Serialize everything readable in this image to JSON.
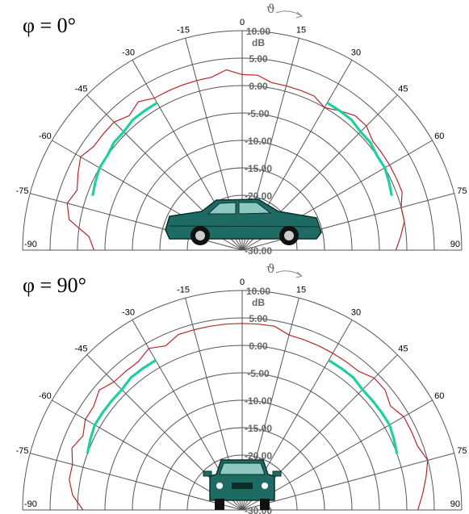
{
  "chart_data": [
    {
      "type": "polar",
      "title": "φ = 0°",
      "rlabel": "dB",
      "theta_label": "ϑ",
      "thetalim": [
        -90,
        90
      ],
      "thetaticks": [
        -90,
        -75,
        -60,
        -45,
        -30,
        -15,
        0,
        15,
        30,
        45,
        60,
        75,
        90
      ],
      "rlim": [
        -30,
        10
      ],
      "rticks": [
        {
          "value": 10,
          "label": "10.00"
        },
        {
          "value": 5,
          "label": "5.00"
        },
        {
          "value": 0,
          "label": "0.00"
        },
        {
          "value": -5,
          "label": "-5.00"
        },
        {
          "value": -10,
          "label": "-10.00"
        },
        {
          "value": -15,
          "label": "-15.00"
        },
        {
          "value": -20,
          "label": "-20.00"
        },
        {
          "value": -30,
          "label": "-30.00"
        }
      ],
      "x": [
        -90,
        -85,
        -80,
        -75,
        -70,
        -65,
        -60,
        -55,
        -50,
        -45,
        -40,
        -35,
        -30,
        -25,
        -20,
        -15,
        -10,
        -5,
        0,
        5,
        10,
        15,
        20,
        25,
        30,
        35,
        40,
        45,
        50,
        55,
        60,
        65,
        70,
        75,
        80,
        85,
        90
      ],
      "series": [
        {
          "color": "#b8262a",
          "values": [
            -3,
            -2,
            2,
            3,
            2,
            3,
            4,
            3,
            3,
            3,
            2,
            3,
            2,
            2,
            2,
            2,
            2,
            3,
            2,
            2,
            1,
            1,
            1,
            1,
            0,
            1,
            2,
            2,
            1,
            1,
            1,
            1,
            1,
            0,
            0,
            -1,
            -2
          ]
        },
        {
          "color": "#1fcf9f",
          "values": [
            null,
            null,
            null,
            null,
            -1,
            -0.5,
            0,
            0,
            0.5,
            0.5,
            1,
            1,
            1,
            null,
            null,
            null,
            null,
            null,
            null,
            null,
            null,
            null,
            null,
            null,
            1,
            1,
            1,
            0.5,
            0.5,
            0,
            0,
            -0.5,
            -1,
            null,
            null,
            null,
            null
          ]
        }
      ]
    },
    {
      "type": "polar",
      "title": "φ = 90°",
      "rlabel": "dB",
      "theta_label": "ϑ",
      "thetalim": [
        -90,
        90
      ],
      "thetaticks": [
        -90,
        -75,
        -60,
        -45,
        -30,
        -15,
        0,
        15,
        30,
        45,
        60,
        75,
        90
      ],
      "rlim": [
        -30,
        10
      ],
      "rticks": [
        {
          "value": 10,
          "label": "10.00"
        },
        {
          "value": 5,
          "label": "5.00"
        },
        {
          "value": 0,
          "label": "0.00"
        },
        {
          "value": -5,
          "label": "-5.00"
        },
        {
          "value": -10,
          "label": "-10.00"
        },
        {
          "value": -15,
          "label": "-15.00"
        },
        {
          "value": -20,
          "label": "-20.00"
        },
        {
          "value": -30,
          "label": "-30.00"
        }
      ],
      "x": [
        -90,
        -85,
        -80,
        -75,
        -70,
        -65,
        -60,
        -55,
        -50,
        -45,
        -40,
        -35,
        -30,
        -25,
        -20,
        -15,
        -10,
        -5,
        0,
        5,
        10,
        15,
        20,
        25,
        30,
        35,
        40,
        45,
        50,
        55,
        60,
        65,
        70,
        75,
        80,
        85,
        90
      ],
      "series": [
        {
          "color": "#b8262a",
          "values": [
            -1,
            1,
            2,
            2,
            3,
            2,
            3,
            3,
            4,
            3,
            3,
            3,
            4,
            3,
            4,
            4,
            4,
            4,
            4,
            4,
            4,
            3,
            3,
            3,
            3,
            3,
            3,
            4,
            4,
            3,
            4,
            4,
            4,
            5,
            4,
            3,
            2
          ]
        },
        {
          "color": "#1fcf9f",
          "values": [
            null,
            null,
            null,
            null,
            0,
            0.5,
            1,
            1,
            1,
            1,
            1.5,
            1.5,
            1.5,
            null,
            null,
            null,
            null,
            null,
            null,
            null,
            null,
            null,
            null,
            null,
            1.5,
            1.5,
            1.5,
            1,
            1,
            1,
            1,
            0.5,
            0,
            null,
            null,
            null,
            null
          ]
        }
      ]
    }
  ]
}
